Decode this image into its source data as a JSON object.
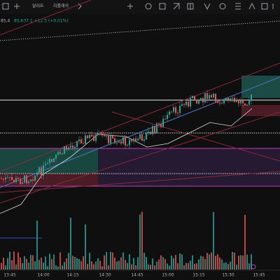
{
  "toolbar": {
    "alert": "알러트",
    "replay": "리플레이"
  },
  "legend": {
    "price_short": "85,4",
    "price_info": "85,637.1 +12.5 (+0.01%)"
  },
  "time_axis": [
    "13:45",
    "14:00",
    "14:15",
    "14:30",
    "14:45",
    "15:00",
    "15:15",
    "15:30",
    "15:45"
  ]
}
